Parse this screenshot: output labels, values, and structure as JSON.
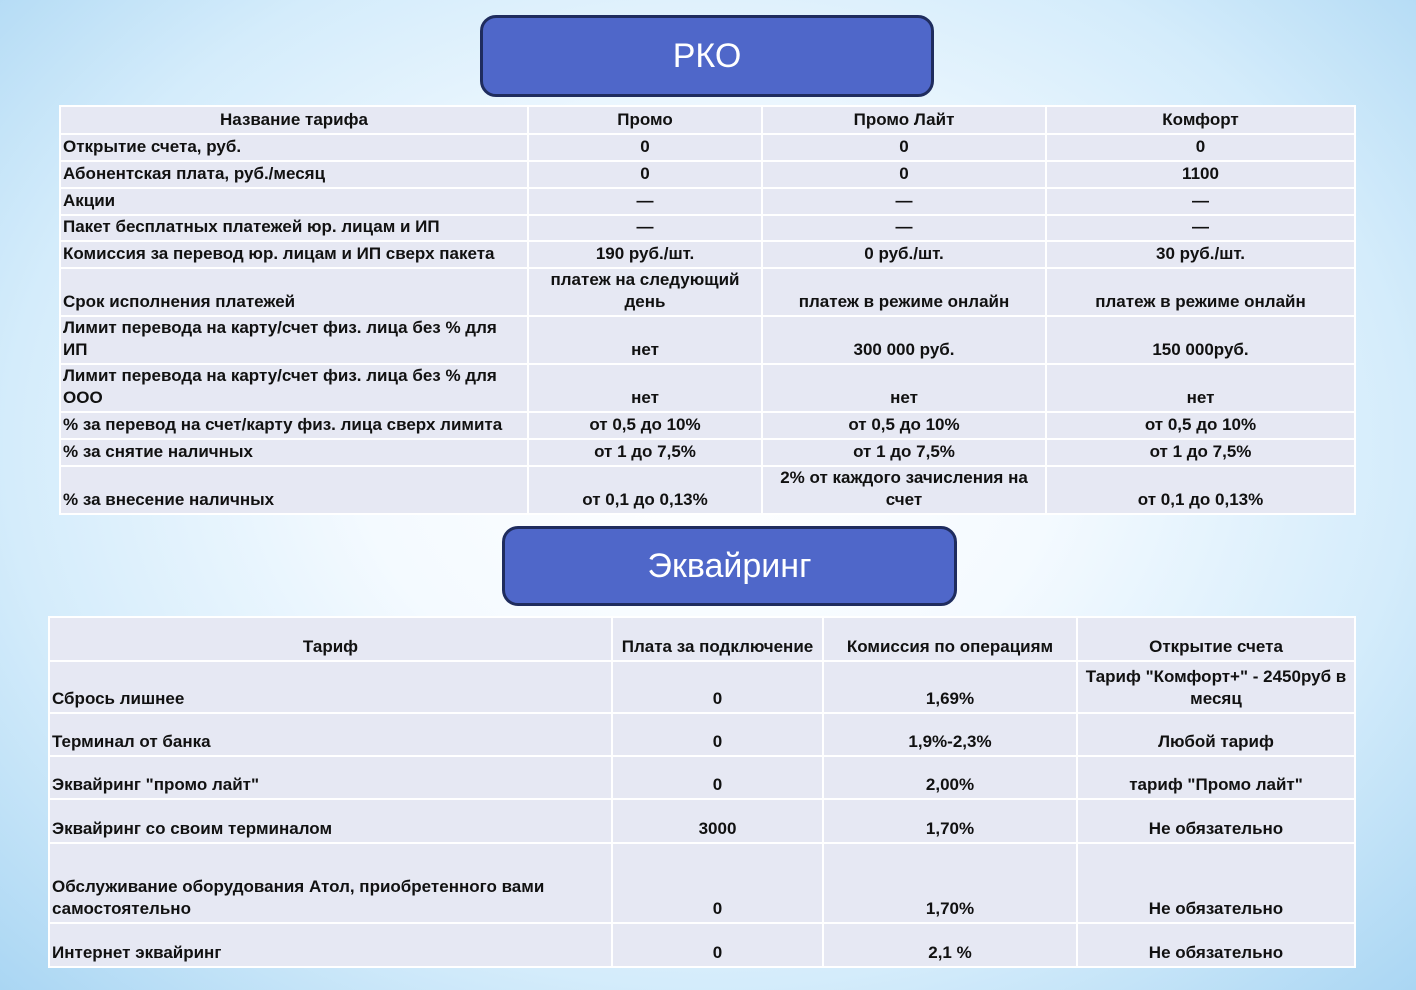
{
  "rko": {
    "title": "РКО",
    "header": [
      "Название тарифа",
      "Промо",
      "Промо Лайт",
      "Комфорт"
    ],
    "rows": [
      [
        "Открытие счета, руб.",
        "0",
        "0",
        "0"
      ],
      [
        "Абонентская плата, руб./месяц",
        "0",
        "0",
        "1100"
      ],
      [
        "Акции",
        "—",
        "—",
        "—"
      ],
      [
        "Пакет бесплатных платежей юр. лицам и ИП",
        "—",
        "—",
        "—"
      ],
      [
        "Комиссия за перевод юр. лицам и ИП сверх пакета",
        "190 руб./шт.",
        "0 руб./шт.",
        "30 руб./шт."
      ],
      [
        "Срок исполнения платежей",
        "платеж на следующий день",
        "платеж в режиме онлайн",
        "платеж в режиме онлайн"
      ],
      [
        "Лимит перевода на карту/счет физ. лица без % для ИП",
        "нет",
        "300 000 руб.",
        "150 000руб."
      ],
      [
        "Лимит перевода на карту/счет физ. лица без % для ООО",
        "нет",
        "нет",
        "нет"
      ],
      [
        "% за перевод на счет/карту физ. лица сверх лимита",
        "от 0,5 до 10%",
        "от 0,5 до 10%",
        "от 0,5 до 10%"
      ],
      [
        "% за снятие наличных",
        "от 1 до 7,5%",
        "от 1 до 7,5%",
        "от 1 до 7,5%"
      ],
      [
        "% за внесение наличных",
        "от 0,1 до 0,13%",
        "2% от каждого зачисления на счет",
        "от 0,1 до 0,13%"
      ]
    ]
  },
  "acquiring": {
    "title": "Эквайринг",
    "header": [
      "Тариф",
      "Плата за подключение",
      "Комиссия по операциям",
      "Открытие счета"
    ],
    "rows": [
      [
        "Сбрось лишнее",
        "0",
        "1,69%",
        "Тариф \"Комфорт+\" - 2450руб в месяц"
      ],
      [
        "Терминал от банка",
        "0",
        "1,9%-2,3%",
        "Любой тариф"
      ],
      [
        "Эквайринг \"промо лайт\"",
        "0",
        "2,00%",
        "тариф \"Промо лайт\""
      ],
      [
        "Эквайринг со своим терминалом",
        "3000",
        "1,70%",
        "Не обязательно"
      ],
      [
        "Обслуживание оборудования Атол, приобретенного вами самостоятельно",
        "0",
        "1,70%",
        "Не обязательно"
      ],
      [
        "Интернет эквайринг",
        "0",
        "2,1 %",
        "Не обязательно"
      ]
    ]
  }
}
